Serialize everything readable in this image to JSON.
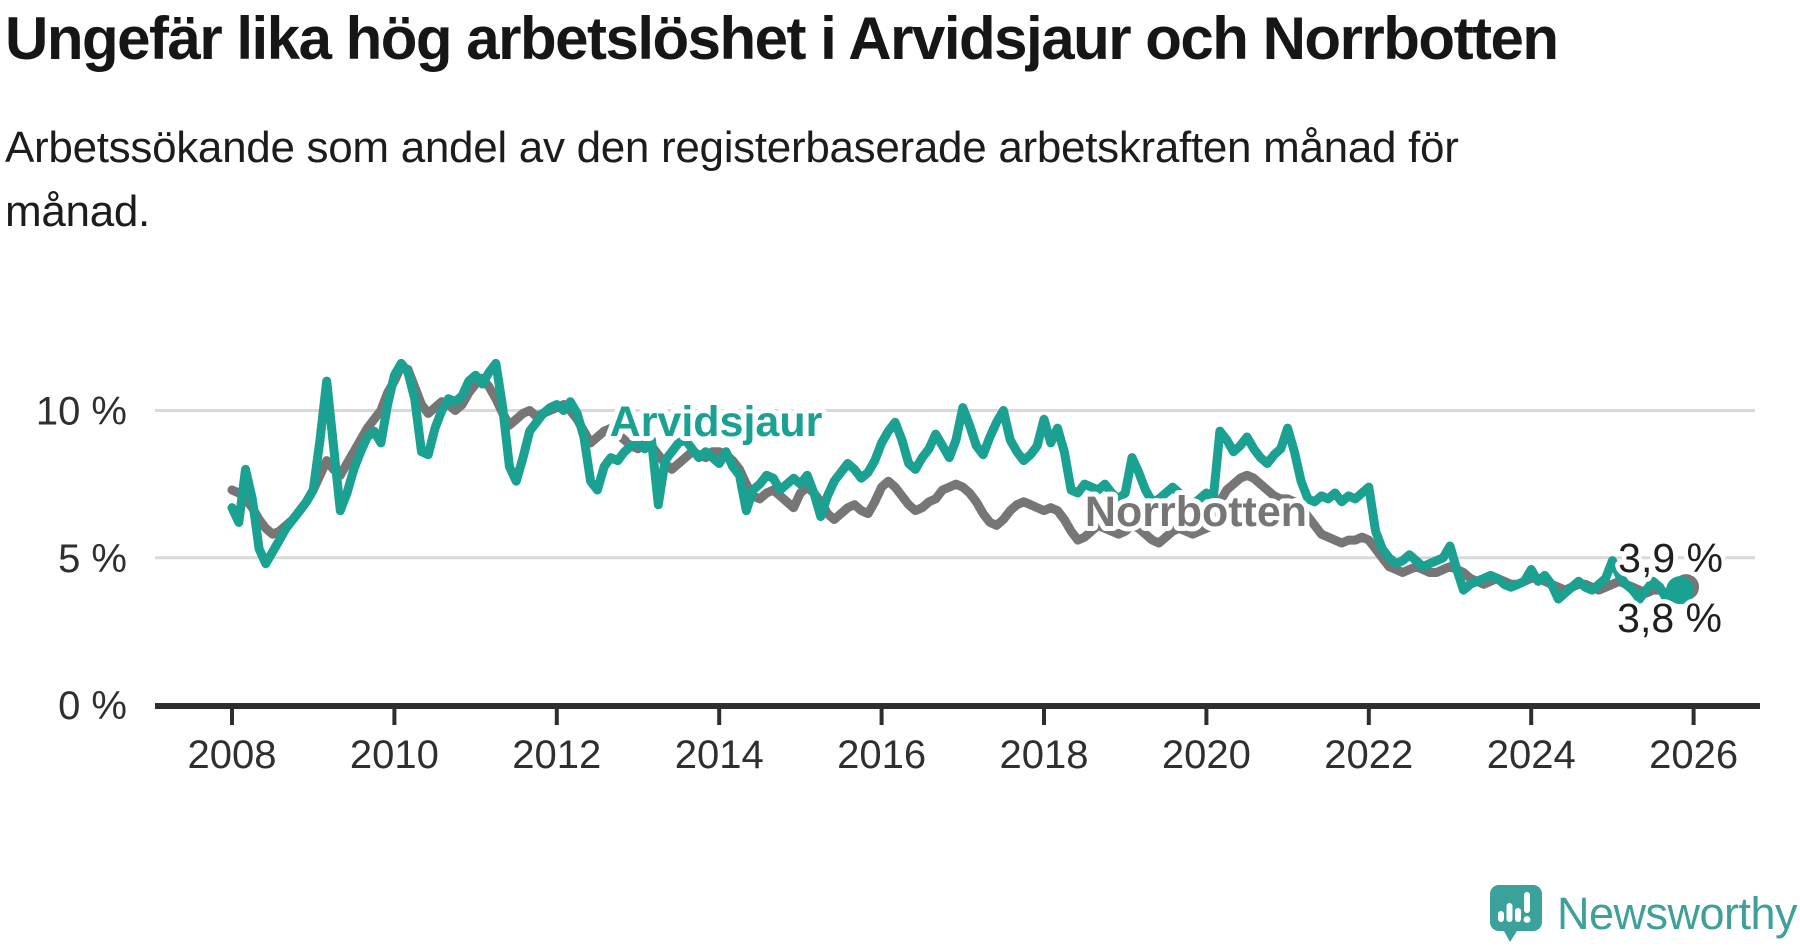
{
  "page": {
    "title": "Ungefär lika hög arbetslöshet i Arvidsjaur och Norrbotten",
    "subtitle_lines": [
      "Arbetssökande som andel av den registerbaserade arbetskraften månad för",
      "månad."
    ]
  },
  "branding": {
    "logo_text": "Newsworthy",
    "logo_icon": "newsworthy-speech-bubble-barchart-icon",
    "logo_color": "#3ba19b"
  },
  "chart_data": {
    "type": "line",
    "title": "Ungefär lika hög arbetslöshet i Arvidsjaur och Norrbotten",
    "subtitle": "Arbetssökande som andel av den registerbaserade arbetskraften månad för månad.",
    "unit": "percent of registered labour force",
    "x_start": "2008-01",
    "x_interval": "monthly",
    "x_ticks": [
      2008,
      2010,
      2012,
      2014,
      2016,
      2018,
      2020,
      2022,
      2024,
      2026
    ],
    "xlim": [
      2007.05,
      2026.6
    ],
    "ylim": [
      0,
      13.7
    ],
    "grid": "horizontal",
    "legend_position": "inline-labels",
    "y_ticks": [
      {
        "value": 0,
        "label": "0 %"
      },
      {
        "value": 5,
        "label": "5 %"
      },
      {
        "value": 10,
        "label": "10 %"
      }
    ],
    "series": [
      {
        "name": "Arvidsjaur",
        "color": "#1aa191",
        "end_label": "3,9 %",
        "end_value": 3.9,
        "values": [
          6.7,
          6.2,
          8.0,
          7.0,
          5.3,
          4.8,
          5.2,
          5.6,
          6.0,
          6.3,
          6.6,
          6.9,
          7.3,
          9.0,
          11.0,
          8.8,
          6.6,
          7.2,
          8.0,
          8.6,
          9.1,
          9.3,
          8.9,
          10.2,
          11.2,
          11.6,
          11.3,
          10.4,
          8.6,
          8.5,
          9.4,
          10.0,
          10.4,
          10.3,
          10.5,
          11.0,
          11.2,
          10.9,
          11.3,
          11.6,
          10.1,
          8.1,
          7.6,
          8.4,
          9.3,
          9.6,
          9.9,
          10.1,
          10.2,
          10.0,
          10.3,
          9.9,
          9.1,
          7.6,
          7.3,
          8.1,
          8.4,
          8.3,
          8.6,
          8.8,
          8.9,
          8.7,
          9.0,
          6.8,
          8.3,
          8.6,
          8.9,
          9.0,
          8.7,
          8.4,
          8.6,
          8.4,
          8.2,
          8.6,
          8.1,
          7.8,
          6.6,
          7.3,
          7.5,
          7.8,
          7.7,
          7.3,
          7.5,
          7.7,
          7.5,
          7.8,
          7.2,
          6.4,
          7.1,
          7.6,
          7.9,
          8.2,
          8.0,
          7.7,
          7.9,
          8.3,
          8.9,
          9.3,
          9.6,
          9.0,
          8.2,
          8.0,
          8.4,
          8.7,
          9.2,
          8.8,
          8.4,
          9.0,
          10.1,
          9.5,
          8.8,
          8.5,
          9.1,
          9.6,
          10.0,
          9.0,
          8.6,
          8.3,
          8.5,
          8.8,
          9.7,
          8.9,
          9.4,
          8.6,
          7.3,
          7.2,
          7.5,
          7.4,
          7.3,
          7.5,
          7.2,
          7.0,
          7.2,
          8.4,
          7.9,
          7.3,
          6.9,
          7.0,
          7.2,
          7.4,
          7.2,
          6.9,
          6.8,
          7.0,
          7.2,
          7.0,
          9.3,
          9.0,
          8.6,
          8.8,
          9.1,
          8.7,
          8.4,
          8.2,
          8.5,
          8.7,
          9.4,
          8.6,
          7.6,
          7.0,
          6.9,
          7.1,
          7.0,
          7.2,
          6.9,
          7.1,
          7.0,
          7.2,
          7.4,
          5.9,
          5.3,
          5.0,
          4.8,
          4.9,
          5.1,
          4.9,
          4.7,
          4.8,
          4.9,
          5.0,
          5.4,
          4.6,
          3.9,
          4.1,
          4.2,
          4.3,
          4.4,
          4.3,
          4.1,
          4.0,
          4.1,
          4.2,
          4.6,
          4.2,
          4.4,
          4.1,
          3.6,
          3.8,
          4.0,
          4.2,
          4.0,
          3.9,
          4.1,
          4.3,
          4.9,
          4.4,
          4.1,
          3.9,
          3.6,
          3.9,
          4.2,
          4.0,
          3.6,
          3.8,
          3.9
        ]
      },
      {
        "name": "Norrbotten",
        "color": "#767676",
        "end_label": "3,8 %",
        "end_value": 3.8,
        "values": [
          7.3,
          7.2,
          7.0,
          6.7,
          6.3,
          6.0,
          5.8,
          5.9,
          6.1,
          6.3,
          6.6,
          6.9,
          7.3,
          7.8,
          8.3,
          8.0,
          7.8,
          8.2,
          8.6,
          9.0,
          9.4,
          9.7,
          10.0,
          10.6,
          11.0,
          11.5,
          11.4,
          10.8,
          10.2,
          9.9,
          10.1,
          10.3,
          10.2,
          10.0,
          10.2,
          10.6,
          10.9,
          11.1,
          10.8,
          10.4,
          9.9,
          9.5,
          9.7,
          9.9,
          10.0,
          9.8,
          9.9,
          10.0,
          10.1,
          10.2,
          10.0,
          9.7,
          9.3,
          8.9,
          9.1,
          9.3,
          9.4,
          9.2,
          9.0,
          8.8,
          8.7,
          8.9,
          8.8,
          8.5,
          8.2,
          8.0,
          8.2,
          8.4,
          8.6,
          8.5,
          8.4,
          8.6,
          8.6,
          8.5,
          8.3,
          8.0,
          7.5,
          7.1,
          7.0,
          7.2,
          7.3,
          7.1,
          6.9,
          6.7,
          7.2,
          7.4,
          7.2,
          6.9,
          6.5,
          6.3,
          6.5,
          6.7,
          6.8,
          6.6,
          6.5,
          6.9,
          7.4,
          7.6,
          7.4,
          7.1,
          6.8,
          6.6,
          6.7,
          6.9,
          7.0,
          7.3,
          7.4,
          7.5,
          7.4,
          7.2,
          6.9,
          6.5,
          6.2,
          6.1,
          6.3,
          6.6,
          6.8,
          6.9,
          6.8,
          6.7,
          6.6,
          6.7,
          6.6,
          6.3,
          5.9,
          5.6,
          5.7,
          5.9,
          6.1,
          6.0,
          5.9,
          5.8,
          5.9,
          6.1,
          6.0,
          5.8,
          5.6,
          5.5,
          5.7,
          5.9,
          6.0,
          5.9,
          5.8,
          5.9,
          6.0,
          6.1,
          6.9,
          7.3,
          7.5,
          7.7,
          7.8,
          7.7,
          7.5,
          7.3,
          7.1,
          7.0,
          7.0,
          6.9,
          6.7,
          6.4,
          6.1,
          5.8,
          5.7,
          5.6,
          5.5,
          5.6,
          5.6,
          5.7,
          5.6,
          5.3,
          5.0,
          4.7,
          4.6,
          4.5,
          4.6,
          4.7,
          4.6,
          4.5,
          4.5,
          4.6,
          4.7,
          4.6,
          4.5,
          4.3,
          4.2,
          4.1,
          4.2,
          4.3,
          4.2,
          4.1,
          4.1,
          4.2,
          4.3,
          4.3,
          4.2,
          4.1,
          4.0,
          3.9,
          4.0,
          4.1,
          4.1,
          4.0,
          3.9,
          4.0,
          4.1,
          4.2,
          4.1,
          4.0,
          3.9,
          3.8,
          3.9,
          3.9,
          3.8,
          3.8,
          3.8
        ]
      }
    ]
  }
}
